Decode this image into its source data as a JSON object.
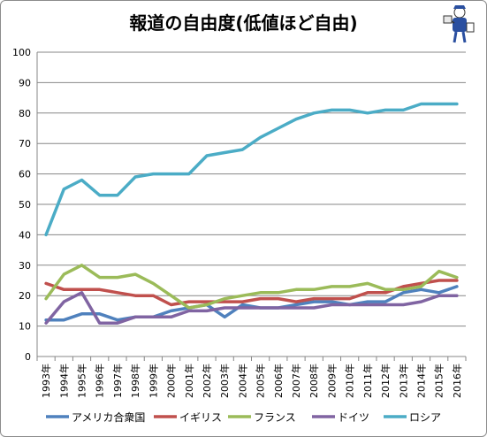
{
  "chart_data": {
    "type": "line",
    "title": "報道の自由度(低値ほど自由)",
    "xlabel": "",
    "ylabel": "",
    "x": [
      "1993年",
      "1994年",
      "1995年",
      "1996年",
      "1997年",
      "1998年",
      "1999年",
      "2000年",
      "2001年",
      "2002年",
      "2003年",
      "2004年",
      "2005年",
      "2006年",
      "2007年",
      "2008年",
      "2009年",
      "2010年",
      "2011年",
      "2012年",
      "2013年",
      "2014年",
      "2015年",
      "2016年"
    ],
    "ylim": [
      0,
      100
    ],
    "yticks": [
      0,
      10,
      20,
      30,
      40,
      50,
      60,
      70,
      80,
      90,
      100
    ],
    "grid": true,
    "legend_position": "bottom",
    "series": [
      {
        "name": "アメリカ合衆国",
        "color": "#4f81bd",
        "values": [
          12,
          12,
          14,
          14,
          12,
          13,
          13,
          15,
          16,
          17,
          13,
          17,
          16,
          16,
          17,
          18,
          18,
          17,
          18,
          18,
          21,
          22,
          21,
          23
        ]
      },
      {
        "name": "イギリス",
        "color": "#c0504d",
        "values": [
          24,
          22,
          22,
          22,
          21,
          20,
          20,
          17,
          18,
          18,
          18,
          18,
          19,
          19,
          18,
          19,
          19,
          19,
          21,
          21,
          23,
          24,
          25,
          25
        ]
      },
      {
        "name": "フランス",
        "color": "#9bbb59",
        "values": [
          19,
          27,
          30,
          26,
          26,
          27,
          24,
          20,
          16,
          17,
          19,
          20,
          21,
          21,
          22,
          22,
          23,
          23,
          24,
          22,
          22,
          23,
          28,
          26
        ]
      },
      {
        "name": "ドイツ",
        "color": "#8064a2",
        "values": [
          11,
          18,
          21,
          11,
          11,
          13,
          13,
          13,
          15,
          15,
          16,
          16,
          16,
          16,
          16,
          16,
          17,
          17,
          17,
          17,
          17,
          18,
          20,
          20
        ]
      },
      {
        "name": "ロシア",
        "color": "#4bacc6",
        "values": [
          40,
          55,
          58,
          53,
          53,
          59,
          60,
          60,
          60,
          66,
          67,
          68,
          72,
          75,
          78,
          80,
          81,
          81,
          80,
          81,
          81,
          83,
          83,
          83
        ]
      }
    ]
  },
  "logo": {
    "icon": "reporter-mascot-icon"
  }
}
